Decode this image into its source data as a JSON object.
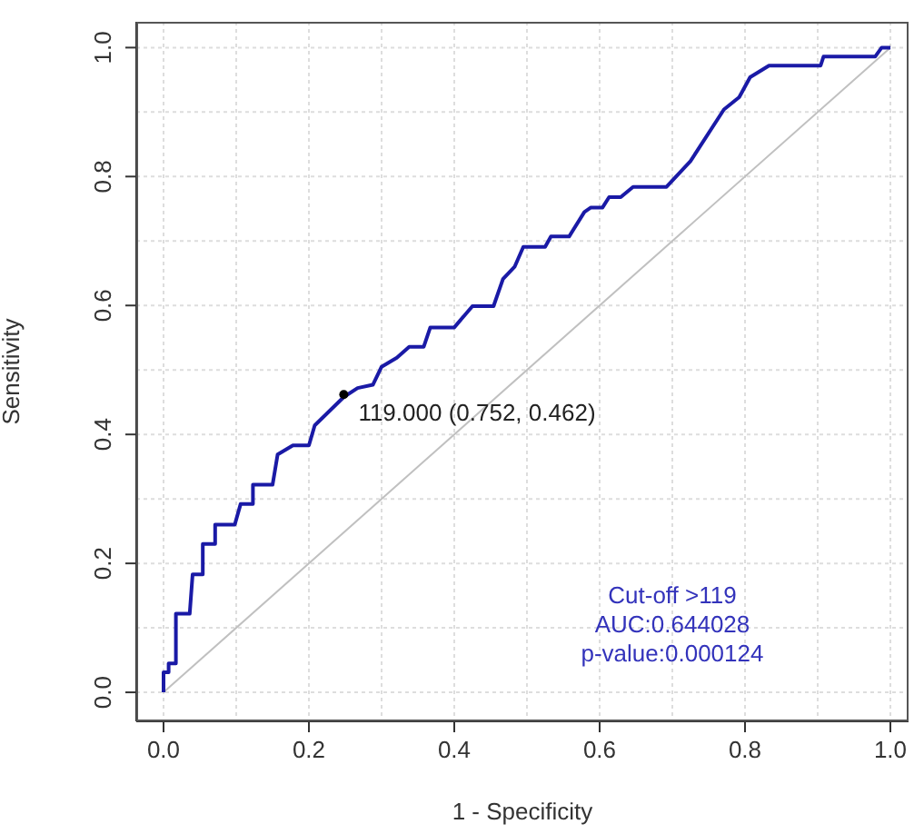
{
  "chart_data": {
    "type": "line",
    "xlabel": "1 - Specificity",
    "ylabel": "Sensitivity",
    "xlim": [
      -0.0375,
      1.025
    ],
    "ylim": [
      -0.045,
      1.04
    ],
    "xticks": [
      {
        "value": 0,
        "label": "0.0"
      },
      {
        "value": 0.1,
        "label": null
      },
      0.2,
      {
        "value": 0.3,
        "label": null
      },
      0.4,
      {
        "value": 0.5,
        "label": null
      },
      0.6,
      {
        "value": 0.7,
        "label": null
      },
      0.8,
      {
        "value": 0.9,
        "label": null
      },
      {
        "value": 1,
        "label": "1.0"
      }
    ],
    "yticks": [
      {
        "value": 0,
        "label": "0.0"
      },
      {
        "value": 0.1,
        "label": null
      },
      0.2,
      {
        "value": 0.3,
        "label": null
      },
      0.4,
      {
        "value": 0.5,
        "label": null
      },
      0.6,
      {
        "value": 0.7,
        "label": null
      },
      0.8,
      {
        "value": 0.9,
        "label": null
      },
      {
        "value": 1,
        "label": "1.0"
      }
    ],
    "grid": true,
    "marker": "none",
    "line_style": "solid",
    "series": [
      {
        "color": "#c0c0c0",
        "x": [
          0,
          1
        ],
        "values": [
          0,
          1
        ]
      },
      {
        "color": "#1a1aa6",
        "x": [
          0,
          0,
          0.007,
          0.007,
          0.017,
          0.017,
          0.036,
          0.04,
          0.054,
          0.054,
          0.071,
          0.071,
          0.098,
          0.106,
          0.123,
          0.123,
          0.15,
          0.157,
          0.178,
          0.2,
          0.208,
          0.248,
          0.267,
          0.288,
          0.3,
          0.321,
          0.338,
          0.358,
          0.367,
          0.4,
          0.425,
          0.454,
          0.467,
          0.483,
          0.495,
          0.525,
          0.533,
          0.558,
          0.579,
          0.588,
          0.604,
          0.613,
          0.629,
          0.646,
          0.692,
          0.725,
          0.771,
          0.792,
          0.807,
          0.833,
          0.904,
          0.908,
          0.979,
          0.988,
          1
        ],
        "values": [
          0,
          0.031,
          0.031,
          0.045,
          0.045,
          0.122,
          0.122,
          0.183,
          0.183,
          0.23,
          0.23,
          0.26,
          0.26,
          0.292,
          0.292,
          0.322,
          0.322,
          0.369,
          0.383,
          0.383,
          0.414,
          0.458,
          0.472,
          0.477,
          0.505,
          0.519,
          0.536,
          0.536,
          0.566,
          0.566,
          0.599,
          0.599,
          0.641,
          0.66,
          0.691,
          0.691,
          0.707,
          0.707,
          0.745,
          0.752,
          0.752,
          0.768,
          0.768,
          0.784,
          0.784,
          0.824,
          0.904,
          0.923,
          0.954,
          0.972,
          0.972,
          0.986,
          0.986,
          1,
          1
        ]
      },
      {
        "type": "scatter",
        "marker": "circle",
        "color": "#000000",
        "x": [
          0.248
        ],
        "values": [
          0.462
        ]
      }
    ],
    "annotations": [
      {
        "text": "119.000 (0.752, 0.462)",
        "x": 0.248,
        "y": 0.462
      },
      "Cut-off >119",
      "AUC:0.644028",
      "p-value:0.000124"
    ]
  }
}
